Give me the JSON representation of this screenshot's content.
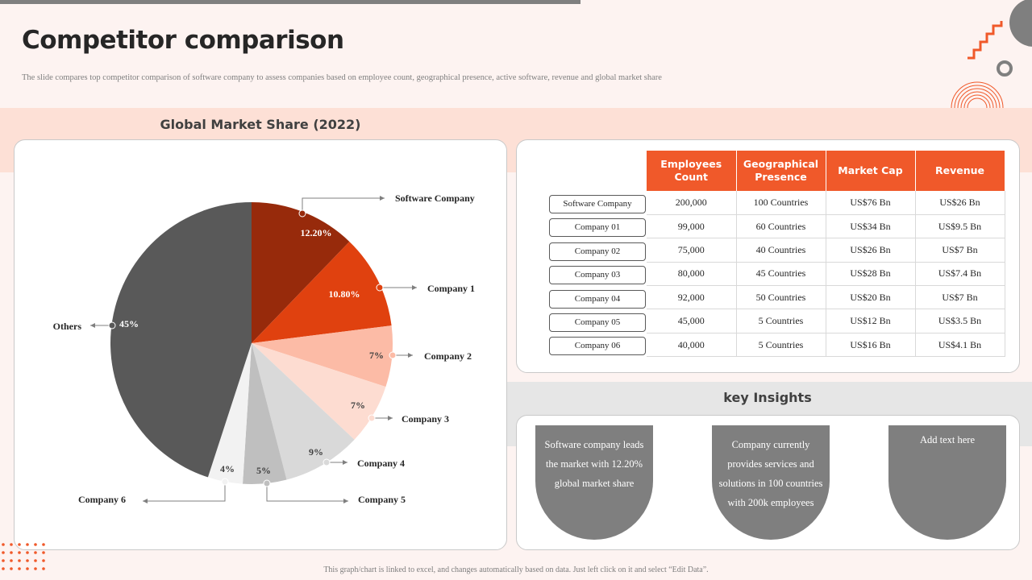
{
  "header": {
    "title": "Competitor comparison",
    "subtitle": "The slide compares top competitor comparison of software company to assess companies based on employee count, geographical  presence, active software, revenue and global  market share"
  },
  "chart_data": {
    "type": "pie",
    "title": "Global Market Share (2022)",
    "slices": [
      {
        "label": "Software Company",
        "value": 12.2,
        "display": "12.20%",
        "color": "#972a0b"
      },
      {
        "label": "Company 1",
        "value": 10.8,
        "display": "10.80%",
        "color": "#e0410f"
      },
      {
        "label": "Company 2",
        "value": 7,
        "display": "7%",
        "color": "#fcbba6"
      },
      {
        "label": "Company 3",
        "value": 7,
        "display": "7%",
        "color": "#fddcd1"
      },
      {
        "label": "Company 4",
        "value": 9,
        "display": "9%",
        "color": "#d9d9d9"
      },
      {
        "label": "Company 5",
        "value": 5,
        "display": "5%",
        "color": "#bfbfbf"
      },
      {
        "label": "Company 6",
        "value": 4,
        "display": "4%",
        "color": "#f2f2f2"
      },
      {
        "label": "Others",
        "value": 45,
        "display": "45%",
        "color": "#595959"
      }
    ]
  },
  "table": {
    "headers": [
      "Employees Count",
      "Geographical Presence",
      "Market Cap",
      "Revenue"
    ],
    "rows": [
      {
        "name": "Software Company",
        "cells": [
          "200,000",
          "100 Countries",
          "US$76 Bn",
          "US$26 Bn"
        ]
      },
      {
        "name": "Company 01",
        "cells": [
          "99,000",
          "60 Countries",
          "US$34 Bn",
          "US$9.5 Bn"
        ]
      },
      {
        "name": "Company 02",
        "cells": [
          "75,000",
          "40 Countries",
          "US$26 Bn",
          "US$7 Bn"
        ]
      },
      {
        "name": "Company 03",
        "cells": [
          "80,000",
          "45 Countries",
          "US$28 Bn",
          "US$7.4 Bn"
        ]
      },
      {
        "name": "Company 04",
        "cells": [
          "92,000",
          "50 Countries",
          "US$20 Bn",
          "US$7 Bn"
        ]
      },
      {
        "name": "Company 05",
        "cells": [
          "45,000",
          "5 Countries",
          "US$12 Bn",
          "US$3.5 Bn"
        ]
      },
      {
        "name": "Company 06",
        "cells": [
          "40,000",
          "5 Countries",
          "US$16 Bn",
          "US$4.1 Bn"
        ]
      }
    ]
  },
  "insights": {
    "title": "key Insights",
    "items": [
      "Software company leads the market with 12.20% global market share",
      "Company currently provides services and solutions in 100 countries with 200k employees",
      "Add text here"
    ]
  },
  "footer": "This graph/chart is linked to excel, and changes automatically based on data. Just left click on it and select “Edit Data”.",
  "colors": {
    "accent": "#f0592a",
    "gray": "#7f7f7f"
  }
}
